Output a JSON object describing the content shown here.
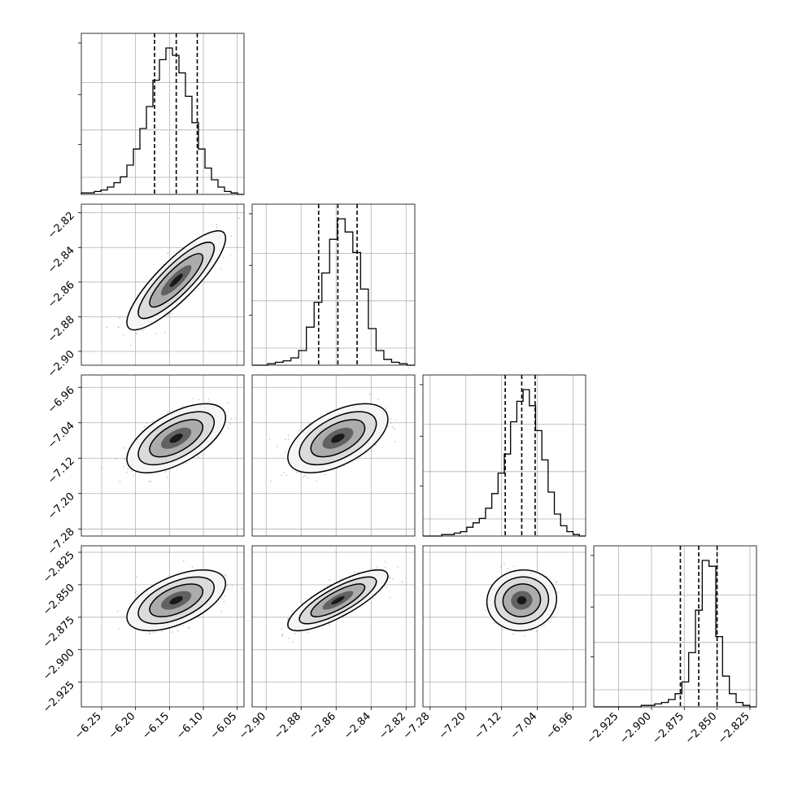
{
  "chart_data": {
    "type": "corner",
    "grid": true,
    "quantiles_shown": [
      0.16,
      0.5,
      0.84
    ],
    "contour_levels": 3,
    "parameters": [
      {
        "range": [
          -6.28,
          -6.04
        ],
        "ticks": [
          -6.25,
          -6.2,
          -6.15,
          -6.1,
          -6.05
        ],
        "tick_labels": [
          "−6.25",
          "−6.20",
          "−6.15",
          "−6.10",
          "−6.05"
        ],
        "mean": -6.14,
        "std": 0.028,
        "quantiles": [
          -6.172,
          -6.14,
          -6.109
        ]
      },
      {
        "range": [
          -2.908,
          -2.815
        ],
        "ticks": [
          -2.9,
          -2.88,
          -2.86,
          -2.84,
          -2.82
        ],
        "tick_labels": [
          "−2.90",
          "−2.88",
          "−2.86",
          "−2.84",
          "−2.82"
        ],
        "mean": -2.859,
        "std": 0.011,
        "quantiles": [
          -2.87,
          -2.859,
          -2.848
        ]
      },
      {
        "range": [
          -7.296,
          -6.932
        ],
        "ticks": [
          -7.28,
          -7.2,
          -7.12,
          -7.04,
          -6.96
        ],
        "tick_labels": [
          "−7.28",
          "−7.20",
          "−7.12",
          "−7.04",
          "−6.96"
        ],
        "mean": -7.075,
        "std": 0.03,
        "quantiles": [
          -7.112,
          -7.075,
          -7.045
        ]
      },
      {
        "range": [
          -2.944,
          -2.82
        ],
        "ticks": [
          -2.925,
          -2.9,
          -2.875,
          -2.85,
          -2.825
        ],
        "tick_labels": [
          "−2.925",
          "−2.900",
          "−2.875",
          "−2.850",
          "−2.825"
        ],
        "mean": -2.862,
        "std": 0.009,
        "quantiles": [
          -2.878,
          -2.864,
          -2.85
        ]
      }
    ],
    "histograms": [
      {
        "param": 0,
        "counts": [
          1,
          1,
          2,
          3,
          5,
          8,
          12,
          20,
          31,
          45,
          60,
          78,
          92,
          100,
          95,
          83,
          67,
          49,
          31,
          18,
          10,
          5,
          2,
          1,
          0
        ]
      },
      {
        "param": 1,
        "counts": [
          0,
          0,
          1,
          2,
          3,
          5,
          10,
          26,
          43,
          63,
          86,
          100,
          91,
          77,
          52,
          25,
          10,
          4,
          2,
          1,
          0
        ]
      },
      {
        "param": 2,
        "counts": [
          0,
          0,
          0,
          1,
          1,
          2,
          3,
          6,
          9,
          12,
          19,
          29,
          43,
          56,
          78,
          92,
          100,
          89,
          72,
          52,
          30,
          15,
          7,
          3,
          1,
          0
        ]
      },
      {
        "param": 3,
        "counts": [
          0,
          0,
          0,
          0,
          0,
          0,
          0,
          1,
          1,
          2,
          3,
          5,
          9,
          17,
          37,
          66,
          100,
          96,
          48,
          21,
          9,
          3,
          1,
          0
        ]
      }
    ],
    "pairs": [
      {
        "x_param": 0,
        "y_param": 1,
        "correlation": 0.85
      },
      {
        "x_param": 0,
        "y_param": 2,
        "correlation": 0.6
      },
      {
        "x_param": 1,
        "y_param": 2,
        "correlation": 0.55
      },
      {
        "x_param": 0,
        "y_param": 3,
        "correlation": 0.55
      },
      {
        "x_param": 1,
        "y_param": 3,
        "correlation": 0.8
      },
      {
        "x_param": 2,
        "y_param": 3,
        "correlation": 0.05
      }
    ]
  }
}
